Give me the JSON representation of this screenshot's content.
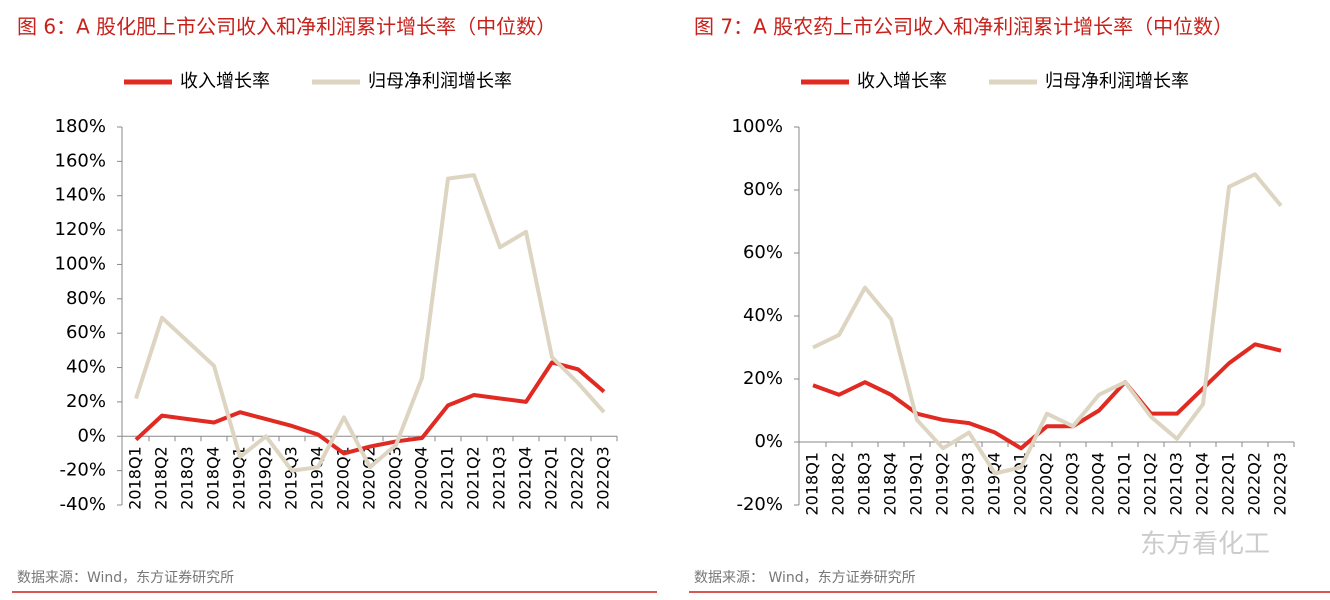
{
  "chart_data": [
    {
      "type": "line",
      "title": "图 6：A 股化肥上市公司收入和净利润累计增长率（中位数）",
      "categories": [
        "2018Q1",
        "2018Q2",
        "2018Q3",
        "2018Q4",
        "2019Q1",
        "2019Q2",
        "2019Q3",
        "2019Q4",
        "2020Q1",
        "2020Q2",
        "2020Q3",
        "2020Q4",
        "2021Q1",
        "2021Q2",
        "2021Q3",
        "2021Q4",
        "2022Q1",
        "2022Q2",
        "2022Q3"
      ],
      "series": [
        {
          "name": "收入增长率",
          "color": "#e02a22",
          "values": [
            -2,
            12,
            10,
            8,
            14,
            10,
            6,
            1,
            -10,
            -6,
            -3,
            -1,
            18,
            24,
            22,
            20,
            43,
            39,
            26
          ]
        },
        {
          "name": "归母净利润增长率",
          "color": "#ddd5c2",
          "values": [
            22,
            69,
            55,
            41,
            -12,
            0,
            -20,
            -18,
            11,
            -18,
            -5,
            34,
            150,
            152,
            110,
            119,
            46,
            31,
            14
          ]
        }
      ],
      "ylim": [
        -40,
        180
      ],
      "yticks": [
        {
          "value": -40,
          "label": "-40%"
        },
        {
          "value": -20,
          "label": "-20%"
        },
        {
          "value": 0,
          "label": "0%"
        },
        {
          "value": 20,
          "label": "20%"
        },
        {
          "value": 40,
          "label": "40%"
        },
        {
          "value": 60,
          "label": "60%"
        },
        {
          "value": 80,
          "label": "80%"
        },
        {
          "value": 100,
          "label": "100%"
        },
        {
          "value": 120,
          "label": "120%"
        },
        {
          "value": 140,
          "label": "140%"
        },
        {
          "value": 160,
          "label": "160%"
        },
        {
          "value": 180,
          "label": "180%"
        }
      ],
      "source": "数据来源：Wind，东方证券研究所"
    },
    {
      "type": "line",
      "title": "图 7：A 股农药上市公司收入和净利润累计增长率（中位数）",
      "categories": [
        "2018Q1",
        "2018Q2",
        "2018Q3",
        "2018Q4",
        "2019Q1",
        "2019Q2",
        "2019Q3",
        "2019Q4",
        "2020Q1",
        "2020Q2",
        "2020Q3",
        "2020Q4",
        "2021Q1",
        "2021Q2",
        "2021Q3",
        "2021Q4",
        "2022Q1",
        "2022Q2",
        "2022Q3"
      ],
      "series": [
        {
          "name": "收入增长率",
          "color": "#e02a22",
          "values": [
            18,
            15,
            19,
            15,
            9,
            7,
            6,
            3,
            -2,
            5,
            5,
            10,
            19,
            9,
            9,
            17,
            25,
            31,
            29
          ]
        },
        {
          "name": "归母净利润增长率",
          "color": "#ddd5c2",
          "values": [
            30,
            34,
            49,
            39,
            7,
            -2,
            3,
            -10,
            -8,
            9,
            5,
            15,
            19,
            8,
            1,
            12,
            81,
            85,
            75
          ]
        }
      ],
      "ylim": [
        -20,
        100
      ],
      "yticks": [
        {
          "value": -20,
          "label": "-20%"
        },
        {
          "value": 0,
          "label": "0%"
        },
        {
          "value": 20,
          "label": "20%"
        },
        {
          "value": 40,
          "label": "40%"
        },
        {
          "value": 60,
          "label": "60%"
        },
        {
          "value": 80,
          "label": "80%"
        },
        {
          "value": 100,
          "label": "100%"
        }
      ],
      "source": "数据来源： Wind，东方证券研究所"
    }
  ],
  "watermark": "东方看化工"
}
